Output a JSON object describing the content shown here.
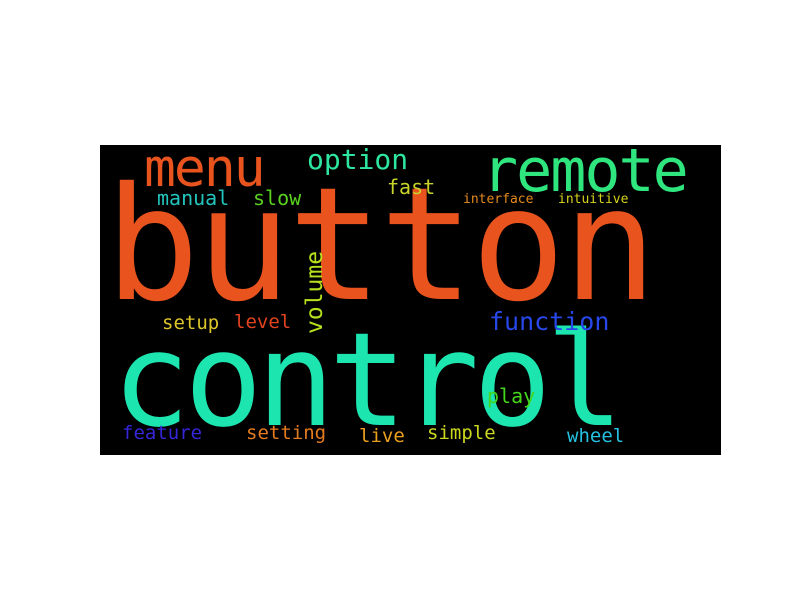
{
  "cloud": {
    "background": "#000000",
    "words": [
      {
        "id": "button",
        "text": "button",
        "color": "#e8531e"
      },
      {
        "id": "control",
        "text": "control",
        "color": "#1de5b0"
      },
      {
        "id": "menu",
        "text": "menu",
        "color": "#e8531e"
      },
      {
        "id": "remote",
        "text": "remote",
        "color": "#2ee57e"
      },
      {
        "id": "option",
        "text": "option",
        "color": "#2ee5a0"
      },
      {
        "id": "fast",
        "text": "fast",
        "color": "#c8d42a"
      },
      {
        "id": "manual",
        "text": "manual",
        "color": "#22c5bd"
      },
      {
        "id": "slow",
        "text": "slow",
        "color": "#5ad11f"
      },
      {
        "id": "interface",
        "text": "interface",
        "color": "#e58a1e"
      },
      {
        "id": "intuitive",
        "text": "intuitive",
        "color": "#d6d21e"
      },
      {
        "id": "volume",
        "text": "volume",
        "color": "#b7e01e"
      },
      {
        "id": "setup",
        "text": "setup",
        "color": "#dec62a"
      },
      {
        "id": "level",
        "text": "level",
        "color": "#e2421e"
      },
      {
        "id": "function",
        "text": "function",
        "color": "#2747e8"
      },
      {
        "id": "play",
        "text": "play",
        "color": "#43d71c"
      },
      {
        "id": "feature",
        "text": "feature",
        "color": "#3526d8"
      },
      {
        "id": "setting",
        "text": "setting",
        "color": "#e57b1e"
      },
      {
        "id": "live",
        "text": "live",
        "color": "#eaa01e"
      },
      {
        "id": "simple",
        "text": "simple",
        "color": "#cbd61e"
      },
      {
        "id": "wheel",
        "text": "wheel",
        "color": "#24c1e0"
      }
    ]
  }
}
